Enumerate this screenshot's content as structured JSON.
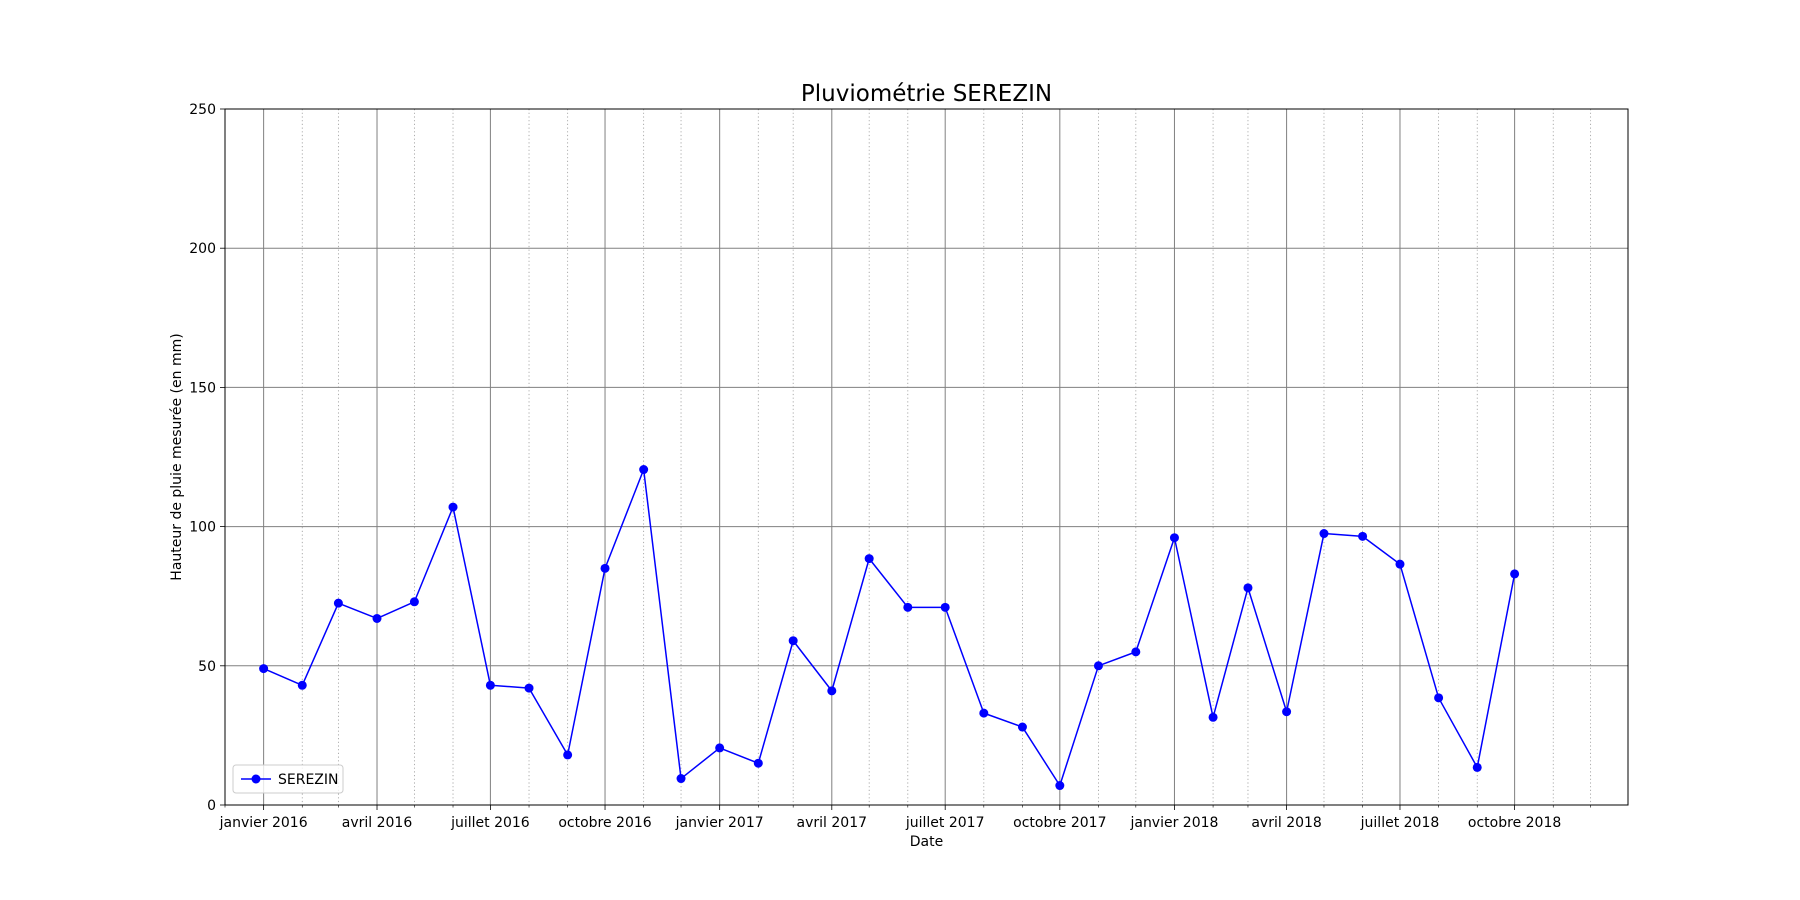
{
  "chart_data": {
    "type": "line",
    "title": "Pluviométrie SEREZIN",
    "xlabel": "Date",
    "ylabel": "Hauteur de pluie mesurée (en mm)",
    "ylim": [
      0,
      250
    ],
    "yticks": [
      0,
      50,
      100,
      150,
      200,
      250
    ],
    "xlim": [
      "2015-12-01",
      "2018-12-31"
    ],
    "xticks": [
      {
        "date": "2016-01-01",
        "label": "janvier 2016"
      },
      {
        "date": "2016-04-01",
        "label": "avril 2016"
      },
      {
        "date": "2016-07-01",
        "label": "juillet 2016"
      },
      {
        "date": "2016-10-01",
        "label": "octobre 2016"
      },
      {
        "date": "2017-01-01",
        "label": "janvier 2017"
      },
      {
        "date": "2017-04-01",
        "label": "avril 2017"
      },
      {
        "date": "2017-07-01",
        "label": "juillet 2017"
      },
      {
        "date": "2017-10-01",
        "label": "octobre 2017"
      },
      {
        "date": "2018-01-01",
        "label": "janvier 2018"
      },
      {
        "date": "2018-04-01",
        "label": "avril 2018"
      },
      {
        "date": "2018-07-01",
        "label": "juillet 2018"
      },
      {
        "date": "2018-10-01",
        "label": "octobre 2018"
      }
    ],
    "minor_xticks": [
      "2015-12-01",
      "2016-02-01",
      "2016-03-01",
      "2016-05-01",
      "2016-06-01",
      "2016-08-01",
      "2016-09-01",
      "2016-11-01",
      "2016-12-01",
      "2017-02-01",
      "2017-03-01",
      "2017-05-01",
      "2017-06-01",
      "2017-08-01",
      "2017-09-01",
      "2017-11-01",
      "2017-12-01",
      "2018-02-01",
      "2018-03-01",
      "2018-05-01",
      "2018-06-01",
      "2018-08-01",
      "2018-09-01",
      "2018-11-01",
      "2018-12-01"
    ],
    "grid": true,
    "legend_position": "bottom-left",
    "series": [
      {
        "name": "SEREZIN",
        "color": "#0000ff",
        "marker": "circle",
        "x": [
          "2016-01-01",
          "2016-02-01",
          "2016-03-01",
          "2016-04-01",
          "2016-05-01",
          "2016-06-01",
          "2016-07-01",
          "2016-08-01",
          "2016-09-01",
          "2016-10-01",
          "2016-11-01",
          "2016-12-01",
          "2017-01-01",
          "2017-02-01",
          "2017-03-01",
          "2017-04-01",
          "2017-05-01",
          "2017-06-01",
          "2017-07-01",
          "2017-08-01",
          "2017-09-01",
          "2017-10-01",
          "2017-11-01",
          "2017-12-01",
          "2018-01-01",
          "2018-02-01",
          "2018-03-01",
          "2018-04-01",
          "2018-05-01",
          "2018-06-01",
          "2018-07-01",
          "2018-08-01",
          "2018-09-01",
          "2018-10-01"
        ],
        "values": [
          49,
          43,
          72.5,
          67,
          73,
          107,
          43,
          42,
          18,
          85,
          120.5,
          9.5,
          20.5,
          15,
          59,
          41,
          88.5,
          71,
          71,
          33,
          28,
          7,
          50,
          55,
          96,
          31.5,
          78,
          33.5,
          97.5,
          96.5,
          86.5,
          38.5,
          13.5,
          83
        ]
      }
    ]
  }
}
